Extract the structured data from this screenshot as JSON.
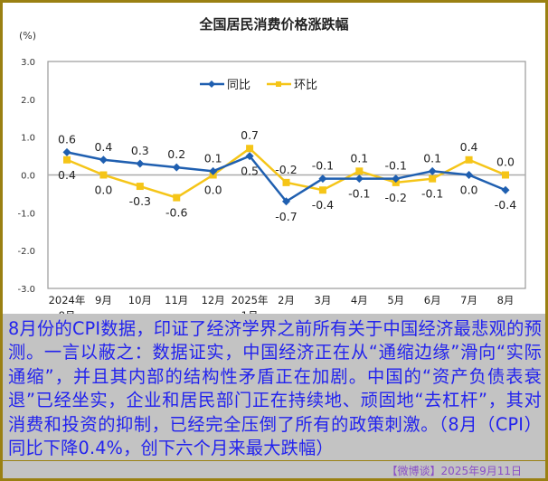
{
  "chart_data": {
    "type": "line",
    "title": "全国居民消费价格涨跌幅",
    "ylabel": "(%)",
    "xlabel": "",
    "ylim": [
      -3.0,
      3.0
    ],
    "yticks": [
      "3.0",
      "2.0",
      "1.0",
      "0.0",
      "-1.0",
      "-2.0",
      "-3.0"
    ],
    "ytick_values": [
      3,
      2,
      1,
      0,
      -1,
      -2,
      -3
    ],
    "categories": [
      [
        "2024年",
        "8月"
      ],
      [
        "9月"
      ],
      [
        "10月"
      ],
      [
        "11月"
      ],
      [
        "12月"
      ],
      [
        "2025年",
        "1月"
      ],
      [
        "2月"
      ],
      [
        "3月"
      ],
      [
        "4月"
      ],
      [
        "5月"
      ],
      [
        "6月"
      ],
      [
        "7月"
      ],
      [
        "8月"
      ]
    ],
    "legend_position": "top-center",
    "grid": false,
    "series": [
      {
        "name": "同比",
        "color": "#1f5fb0",
        "marker": "diamond",
        "values": [
          0.6,
          0.4,
          0.3,
          0.2,
          0.1,
          0.5,
          -0.7,
          -0.1,
          -0.1,
          -0.1,
          0.1,
          0.0,
          -0.4
        ],
        "labels": [
          "0.6",
          "0.4",
          "0.3",
          "0.2",
          "0.1",
          "0.5",
          "-0.7",
          "-0.1",
          "-0.1",
          "-0.1",
          "0.1",
          "0.0",
          "-0.4"
        ]
      },
      {
        "name": "环比",
        "color": "#f5c518",
        "marker": "square",
        "values": [
          0.4,
          0.0,
          -0.3,
          -0.6,
          0.0,
          0.7,
          -0.2,
          -0.4,
          0.1,
          -0.2,
          -0.1,
          0.4,
          0.0
        ],
        "labels": [
          "0.4",
          "0.0",
          "-0.3",
          "-0.6",
          "0.0",
          "0.7",
          "-0.2",
          "-0.4",
          "0.1",
          "-0.2",
          "-0.1",
          "0.4",
          "0.0"
        ]
      }
    ]
  },
  "commentary": {
    "text": "8月份的CPI数据，印证了经济学界之前所有关于中国经济最悲观的预测。一言以蔽之：数据证实，中国经济正在从“通缩边缘”滑向“实际通缩”，并且其内部的结构性矛盾正在加剧。中国的“资产负债表衰退”已经坐实，企业和居民部门正在持续地、顽固地“去杠杆”，其对消费和投资的抑制，已经完全压倒了所有的政策刺激。（8月（CPI）同比下降0.4%，创下六个月来最大跌幅）",
    "footer": "【微博谈】2025年9月11日",
    "text_color": "#2222ee",
    "footer_color": "#8a4fc8"
  }
}
